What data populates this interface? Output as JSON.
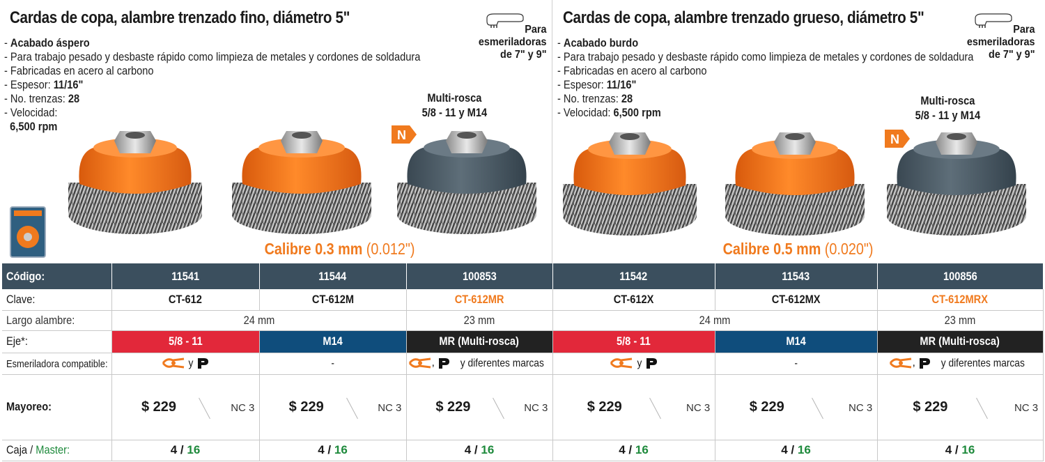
{
  "panels": [
    {
      "title": "Cardas de copa, alambre trenzado fino, diámetro 5\"",
      "finish_label": "Acabado áspero",
      "spec_lines": [
        "Para trabajo pesado y desbaste rápido como limpieza de metales y cordones de soldadura",
        "Fabricadas en acero al carbono"
      ],
      "espesor_label": "Espesor:",
      "espesor_value": "11/16\"",
      "trenzas_label": "No. trenzas:",
      "trenzas_value": "28",
      "velocidad_label": "Velocidad:",
      "velocidad_value": "6,500 rpm",
      "grinder_text_1": "Para",
      "grinder_text_2": "esmeriladoras",
      "grinder_text_3": "de 7\" y 9\"",
      "multi_1": "Multi-rosca",
      "multi_2": "5/8 - 11 y M14",
      "badge": "N",
      "calibre": "Calibre 0.3 mm",
      "calibre_inch": "(0.012\")"
    },
    {
      "title": "Cardas de copa, alambre trenzado grueso, diámetro 5\"",
      "finish_label": "Acabado burdo",
      "spec_lines": [
        "Para trabajo pesado y desbaste rápido como limpieza de metales y cordones de soldadura",
        "Fabricadas en acero al carbono"
      ],
      "espesor_label": "Espesor:",
      "espesor_value": "11/16\"",
      "trenzas_label": "No. trenzas:",
      "trenzas_value": "28",
      "velocidad_label": "Velocidad:",
      "velocidad_value": "6,500 rpm",
      "grinder_text_1": "Para",
      "grinder_text_2": "esmeriladoras",
      "grinder_text_3": "de 7\" y 9\"",
      "multi_1": "Multi-rosca",
      "multi_2": "5/8 - 11 y M14",
      "badge": "N",
      "calibre": "Calibre 0.5 mm",
      "calibre_inch": "(0.020\")"
    }
  ],
  "table": {
    "labels": {
      "codigo": "Código:",
      "clave": "Clave:",
      "largo": "Largo alambre:",
      "eje": "Eje*:",
      "compat": "Esmeriladora compatible:",
      "mayoreo": "Mayoreo:",
      "caja": "Caja /",
      "master": "Master:"
    },
    "codigos": [
      "11541",
      "11544",
      "100853",
      "11542",
      "11543",
      "100856"
    ],
    "claves": [
      "CT-612",
      "CT-612M",
      "CT-612MR",
      "CT-612X",
      "CT-612MX",
      "CT-612MRX"
    ],
    "largo": [
      "24 mm",
      "23 mm",
      "24 mm",
      "23 mm"
    ],
    "eje": [
      "5/8 - 11",
      "M14",
      "MR (Multi-rosca)",
      "5/8 - 11",
      "M14",
      "MR (Multi-rosca)"
    ],
    "compat": [
      "y",
      "-",
      "y diferentes marcas",
      "y",
      "-",
      "y diferentes marcas"
    ],
    "precios": [
      "$ 229",
      "$ 229",
      "$ 229",
      "$ 229",
      "$ 229",
      "$ 229"
    ],
    "nc": [
      "NC 3",
      "NC 3",
      "NC 3",
      "NC 3",
      "NC 3",
      "NC 3"
    ],
    "caja": [
      "4",
      "4",
      "4",
      "4",
      "4",
      "4"
    ],
    "master": [
      "16",
      "16",
      "16",
      "16",
      "16",
      "16"
    ],
    "slash": "/"
  },
  "colors": {
    "orange": "#f07a1e",
    "header_bg": "#3b4f5e",
    "red": "#e2283a",
    "blue": "#0f4d7c",
    "black": "#222222",
    "green": "#1e8a3c"
  }
}
